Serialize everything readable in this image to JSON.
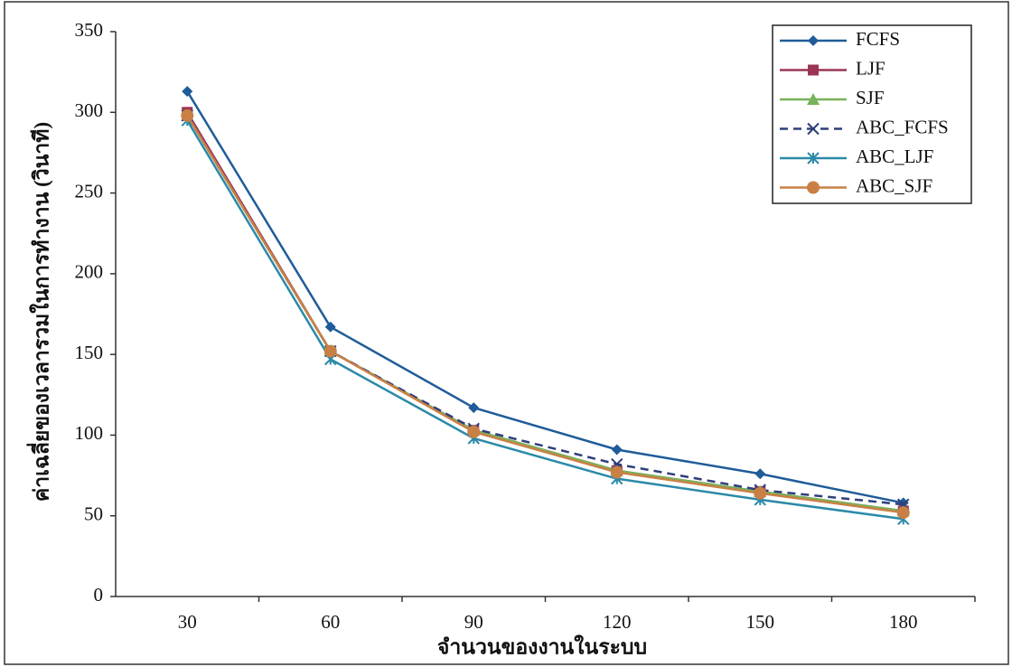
{
  "chart_data": {
    "type": "line",
    "x_label": "จำนวนของงานในระบบ",
    "y_label": "ค่าเฉลี่ยของเวลารวมในการทำงาน (วินาที)",
    "categories": [
      "30",
      "60",
      "90",
      "120",
      "150",
      "180"
    ],
    "series": [
      {
        "name": "FCFS",
        "color": "#1f5c99",
        "marker": "diamond",
        "dashed": false,
        "values": [
          313,
          167,
          117,
          91,
          76,
          58
        ]
      },
      {
        "name": "LJF",
        "color": "#9b3553",
        "marker": "square",
        "dashed": false,
        "values": [
          300,
          152,
          103,
          78,
          65,
          53
        ]
      },
      {
        "name": "SJF",
        "color": "#77b35a",
        "marker": "triangle",
        "dashed": false,
        "values": [
          298,
          152,
          103,
          78,
          65,
          53
        ]
      },
      {
        "name": "ABC_FCFS",
        "color": "#2e3e7a",
        "marker": "x",
        "dashed": true,
        "values": [
          298,
          152,
          104,
          82,
          66,
          57
        ]
      },
      {
        "name": "ABC_LJF",
        "color": "#2b8aa8",
        "marker": "asterisk",
        "dashed": false,
        "values": [
          295,
          147,
          98,
          73,
          60,
          48
        ]
      },
      {
        "name": "ABC_SJF",
        "color": "#c98045",
        "marker": "circle",
        "dashed": false,
        "values": [
          298,
          152,
          102,
          77,
          64,
          52
        ]
      }
    ],
    "ylim": [
      0,
      350
    ],
    "yticks": [
      0,
      50,
      100,
      150,
      200,
      250,
      300,
      350
    ],
    "grid": false,
    "legend": "upper right"
  }
}
